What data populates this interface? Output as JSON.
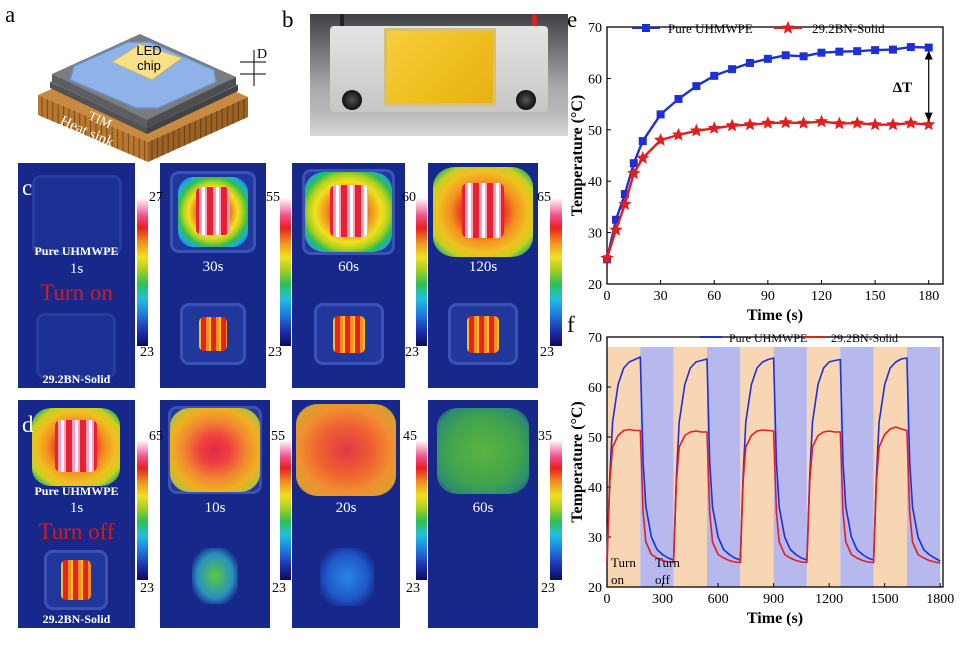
{
  "panel_letters": {
    "a": "a",
    "b": "b",
    "c": "c",
    "d": "d",
    "e": "e",
    "f": "f"
  },
  "panel_a": {
    "led_chip": "LED chip",
    "d_label": "D",
    "tim_label": "TIM",
    "heat_sink_label": "Heat sink"
  },
  "panel_c": {
    "sample_top": "Pure UHMWPE",
    "first_time": "1s",
    "action": "Turn on",
    "sample_bottom": "29.2BN-Solid",
    "times": [
      "30s",
      "60s",
      "120s"
    ],
    "colorbar_max": [
      "27",
      "55",
      "60",
      "65"
    ],
    "colorbar_min": [
      "23",
      "23",
      "23",
      "23"
    ]
  },
  "panel_d": {
    "sample_top": "Pure UHMWPE",
    "first_time": "1s",
    "action": "Turn off",
    "sample_bottom": "29.2BN-Solid",
    "times": [
      "10s",
      "20s",
      "60s"
    ],
    "colorbar_max": [
      "65",
      "55",
      "45",
      "35"
    ],
    "colorbar_min": [
      "23",
      "23",
      "23",
      "23"
    ]
  },
  "colors": {
    "pure_uhmwpe": "#1f2fd6",
    "bn_solid": "#e02020",
    "heating_band": "#f9d6b3",
    "cooling_band": "#b7b9ee",
    "action_text": "#d21c1c"
  },
  "chart_data": [
    {
      "type": "line",
      "panel": "e",
      "xlabel": "Time (s)",
      "ylabel": "Temperature (°C)",
      "xlim": [
        0,
        188
      ],
      "ylim": [
        20,
        70
      ],
      "xticks": [
        0,
        30,
        60,
        90,
        120,
        150,
        180
      ],
      "yticks": [
        20,
        30,
        40,
        50,
        60,
        70
      ],
      "x": [
        0,
        5,
        10,
        15,
        20,
        30,
        40,
        50,
        60,
        70,
        80,
        90,
        100,
        110,
        120,
        130,
        140,
        150,
        160,
        170,
        180
      ],
      "series": [
        {
          "name": "Pure UHMWPE",
          "color": "#1f2fd6",
          "values": [
            24.8,
            32.5,
            37.5,
            43.5,
            47.8,
            53,
            56,
            58.5,
            60.5,
            61.8,
            63,
            63.8,
            64.5,
            64.3,
            65,
            65.2,
            65.3,
            65.5,
            65.6,
            66.1,
            66
          ]
        },
        {
          "name": "29.2BN-Solid",
          "color": "#e02020",
          "values": [
            25,
            30.5,
            35.5,
            41.5,
            44.5,
            48,
            49,
            49.8,
            50.3,
            50.8,
            51,
            51.3,
            51.4,
            51.3,
            51.6,
            51.2,
            51.3,
            51,
            51,
            51.3,
            51
          ]
        }
      ],
      "annotations": [
        {
          "text": "ΔT",
          "x": 180,
          "y_from": 66,
          "y_to": 51
        }
      ],
      "legend": "top"
    },
    {
      "type": "line",
      "panel": "f",
      "xlabel": "Time (s)",
      "ylabel": "Temperature (°C)",
      "xlim": [
        0,
        1815
      ],
      "ylim": [
        20,
        70
      ],
      "xticks": [
        0,
        300,
        600,
        900,
        1200,
        1500,
        1800
      ],
      "yticks": [
        20,
        30,
        40,
        50,
        60,
        70
      ],
      "phase_top": 68,
      "phases": [
        {
          "start": 0,
          "end": 180,
          "heating": true
        },
        {
          "start": 180,
          "end": 360,
          "heating": false
        },
        {
          "start": 360,
          "end": 540,
          "heating": true
        },
        {
          "start": 540,
          "end": 720,
          "heating": false
        },
        {
          "start": 720,
          "end": 900,
          "heating": true
        },
        {
          "start": 900,
          "end": 1080,
          "heating": false
        },
        {
          "start": 1080,
          "end": 1260,
          "heating": true
        },
        {
          "start": 1260,
          "end": 1440,
          "heating": false
        },
        {
          "start": 1440,
          "end": 1620,
          "heating": true
        },
        {
          "start": 1620,
          "end": 1800,
          "heating": false
        }
      ],
      "x": [
        0,
        15,
        30,
        60,
        90,
        120,
        150,
        180,
        195,
        210,
        240,
        270,
        300,
        330,
        360,
        375,
        390,
        420,
        450,
        480,
        510,
        540,
        555,
        570,
        600,
        630,
        660,
        690,
        720,
        735,
        750,
        780,
        810,
        840,
        870,
        900,
        915,
        930,
        960,
        990,
        1020,
        1050,
        1080,
        1095,
        1110,
        1140,
        1170,
        1200,
        1230,
        1260,
        1275,
        1290,
        1320,
        1350,
        1380,
        1410,
        1440,
        1455,
        1470,
        1500,
        1530,
        1560,
        1590,
        1620,
        1635,
        1650,
        1680,
        1710,
        1740,
        1770,
        1800
      ],
      "series": [
        {
          "name": "Pure UHMWPE",
          "color": "#1f2fd6",
          "values": [
            25,
            42,
            53,
            60.5,
            63.8,
            65,
            65.5,
            66,
            45,
            36,
            30,
            27.5,
            26.5,
            25.8,
            25.4,
            42,
            53,
            60.5,
            63.8,
            65,
            65.3,
            65.6,
            45,
            36,
            30,
            27.5,
            26.5,
            25.8,
            25.4,
            42,
            53,
            60.5,
            63.8,
            65,
            65.5,
            65.8,
            45,
            36,
            30,
            27.5,
            26.5,
            25.8,
            25.4,
            42,
            53,
            60.5,
            63.8,
            65,
            65.3,
            65.5,
            45,
            36,
            30,
            27.5,
            26.5,
            25.8,
            25.4,
            42,
            53,
            60.5,
            63.8,
            65,
            65.6,
            65.8,
            45,
            36,
            30,
            27.5,
            26.5,
            25.8,
            25.2
          ]
        },
        {
          "name": "29.2BN-Solid",
          "color": "#e02020",
          "values": [
            25,
            41,
            48,
            50.3,
            51.3,
            51.5,
            51.3,
            51.3,
            35,
            29,
            26.5,
            25.8,
            25.3,
            25,
            24.9,
            41,
            48,
            50.3,
            51,
            51.2,
            51,
            51,
            35,
            29,
            26.5,
            25.8,
            25.3,
            25,
            24.9,
            41,
            48,
            50.3,
            51.2,
            51.4,
            51.3,
            51.2,
            35,
            29,
            26.5,
            25.8,
            25.3,
            25,
            24.9,
            41,
            48,
            50.3,
            51,
            51.2,
            51,
            51,
            35,
            29,
            26.5,
            25.8,
            25.3,
            25,
            24.9,
            41,
            48,
            50.5,
            51.6,
            52,
            51.6,
            51.3,
            35,
            29,
            26.5,
            25.8,
            25.3,
            25,
            24.8
          ]
        }
      ],
      "annotations": [
        {
          "text": "Turn on"
        },
        {
          "text": "Turn off"
        }
      ],
      "legend": "top"
    }
  ]
}
